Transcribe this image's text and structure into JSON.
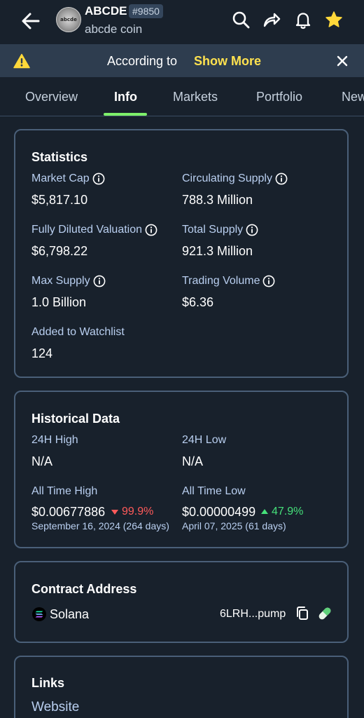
{
  "header": {
    "logo_text": "abcde",
    "symbol": "ABCDE",
    "rank": "#9850",
    "name": "abcde coin",
    "icons": [
      "back-arrow-icon",
      "search-icon",
      "share-icon",
      "bell-icon",
      "star-icon"
    ]
  },
  "banner": {
    "text": "According to",
    "more_label": "Show More",
    "icons": [
      "warning-icon",
      "close-icon"
    ]
  },
  "tabs": [
    {
      "label": "Overview",
      "active": false
    },
    {
      "label": "Info",
      "active": true
    },
    {
      "label": "Markets",
      "active": false
    },
    {
      "label": "Portfolio",
      "active": false
    },
    {
      "label": "New",
      "active": false
    }
  ],
  "statistics": {
    "title": "Statistics",
    "market_cap": {
      "label": "Market Cap",
      "value": "$5,817.10"
    },
    "circulating_supply": {
      "label": "Circulating Supply",
      "value": "788.3 Million"
    },
    "fdv": {
      "label": "Fully Diluted Valuation",
      "value": "$6,798.22"
    },
    "total_supply": {
      "label": "Total Supply",
      "value": "921.3 Million"
    },
    "max_supply": {
      "label": "Max Supply",
      "value": "1.0 Billion"
    },
    "trading_volume": {
      "label": "Trading Volume",
      "value": "$6.36"
    },
    "watchlist": {
      "label": "Added to Watchlist",
      "value": "124"
    }
  },
  "historical": {
    "title": "Historical Data",
    "high_24h": {
      "label": "24H High",
      "value": "N/A"
    },
    "low_24h": {
      "label": "24H Low",
      "value": "N/A"
    },
    "ath": {
      "label": "All Time High",
      "value": "$0.00677886",
      "change": "99.9%",
      "date": "September 16, 2024 (264 days)"
    },
    "atl": {
      "label": "All Time Low",
      "value": "$0.00000499",
      "change": "47.9%",
      "date": "April 07, 2025 (61 days)"
    }
  },
  "contract": {
    "title": "Contract Address",
    "chain": "Solana",
    "address": "6LRH...pump",
    "icons": [
      "solana-icon",
      "copy-icon",
      "pill-icon"
    ]
  },
  "links": {
    "title": "Links",
    "website": "Website"
  },
  "colors": {
    "background": "#18212c",
    "banner": "#2e3d4f",
    "accent_green": "#7ef06a",
    "highlight_yellow": "#ffe24f",
    "label_blue": "#b9cff0",
    "down_red": "#ff5a5a",
    "up_green": "#45e07a",
    "card_border": "#4a5f78"
  }
}
